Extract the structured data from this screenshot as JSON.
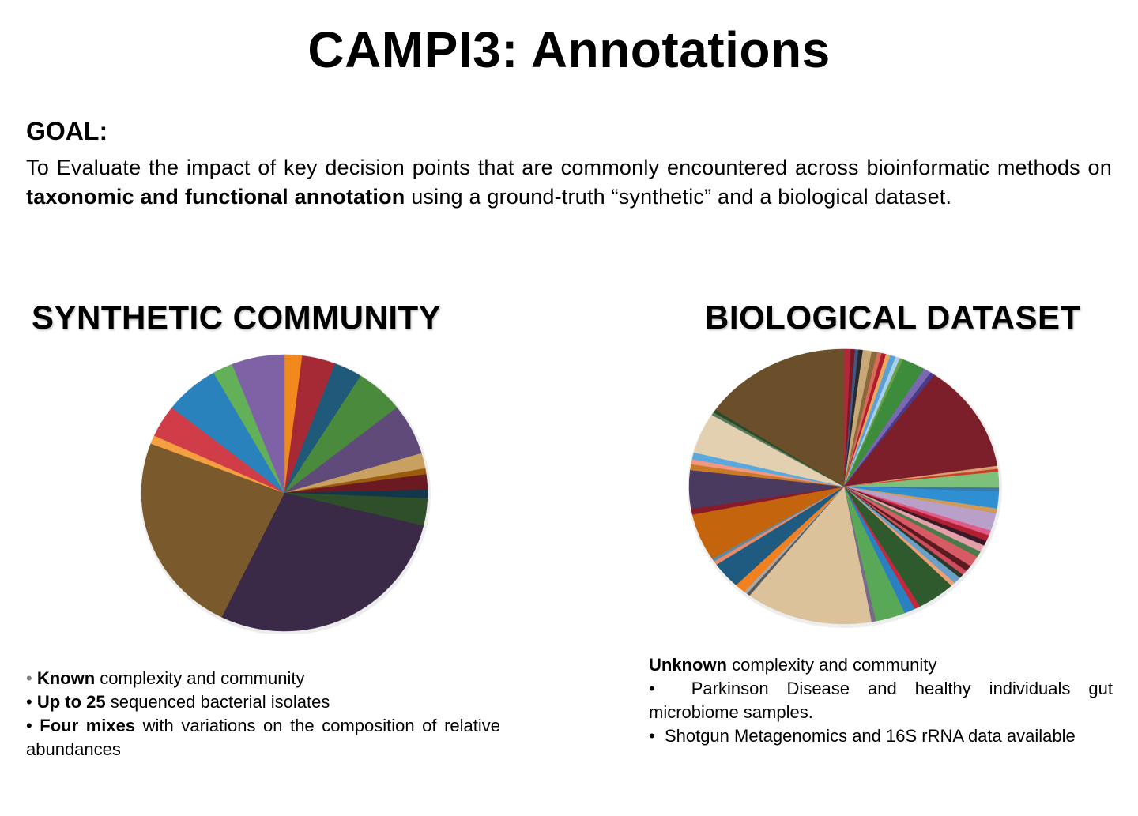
{
  "title": "CAMPI3: Annotations",
  "goal": {
    "heading": "GOAL:",
    "text_pre": "To Evaluate the impact of key decision points that are commonly encountered across bioinformatic methods on ",
    "text_bold": "taxonomic and functional annotation",
    "text_post": " using a ground-truth “synthetic” and a biological dataset."
  },
  "synthetic": {
    "heading": "SYNTHETIC COMMUNITY",
    "bullets": [
      {
        "bullet": "•",
        "bold": "Known",
        "rest": " complexity and community"
      },
      {
        "bullet": "•",
        "bold": "Up to 25",
        "rest": " sequenced bacterial isolates"
      },
      {
        "bullet": "•",
        "bold": "Four mixes",
        "rest": " with variations on the composition of relative abundances"
      }
    ]
  },
  "biological": {
    "heading": "BIOLOGICAL DATASET",
    "intro_bold": "Unknown",
    "intro_rest": " complexity and community",
    "bullets": [
      {
        "bullet": "•",
        "text": "Parkinson Disease and healthy individuals gut microbiome samples."
      },
      {
        "bullet": "•",
        "text": "Shotgun Metagenomics and 16S rRNA data available"
      }
    ]
  },
  "chart_data": [
    {
      "type": "pie",
      "slices": [
        {
          "value": 2.0,
          "color": "#f08a1c"
        },
        {
          "value": 3.8,
          "color": "#a52a35"
        },
        {
          "value": 3.2,
          "color": "#1f5a7a"
        },
        {
          "value": 5.5,
          "color": "#4a8a3c"
        },
        {
          "value": 6.0,
          "color": "#5f4a7a"
        },
        {
          "value": 1.8,
          "color": "#c8a060"
        },
        {
          "value": 0.7,
          "color": "#9a5a10"
        },
        {
          "value": 1.8,
          "color": "#6a1a20"
        },
        {
          "value": 1.0,
          "color": "#12364a"
        },
        {
          "value": 3.2,
          "color": "#2f4f2a"
        },
        {
          "value": 28.6,
          "color": "#3a2a48"
        },
        {
          "value": 23.7,
          "color": "#7a5a2c"
        },
        {
          "value": 1.0,
          "color": "#f5a040"
        },
        {
          "value": 3.8,
          "color": "#d03c48"
        },
        {
          "value": 6.2,
          "color": "#2a82bc"
        },
        {
          "value": 2.3,
          "color": "#62b058"
        },
        {
          "value": 6.0,
          "color": "#7f62a6"
        }
      ]
    },
    {
      "type": "pie",
      "slices": [
        {
          "value": 0.6,
          "color": "#b22838"
        },
        {
          "value": 0.4,
          "color": "#7a1a28"
        },
        {
          "value": 0.3,
          "color": "#3a5a8a"
        },
        {
          "value": 0.4,
          "color": "#2a2a2a"
        },
        {
          "value": 0.8,
          "color": "#c8a878"
        },
        {
          "value": 0.5,
          "color": "#8a6a3a"
        },
        {
          "value": 0.4,
          "color": "#d86a5a"
        },
        {
          "value": 0.4,
          "color": "#b01c2c"
        },
        {
          "value": 0.4,
          "color": "#e8a860"
        },
        {
          "value": 0.5,
          "color": "#5aa0d8"
        },
        {
          "value": 0.4,
          "color": "#a8d0e8"
        },
        {
          "value": 0.3,
          "color": "#6aa04a"
        },
        {
          "value": 2.1,
          "color": "#3c8c3c"
        },
        {
          "value": 0.7,
          "color": "#7a68b0"
        },
        {
          "value": 0.4,
          "color": "#4a3a8a"
        },
        {
          "value": 11.0,
          "color": "#7d1f2a"
        },
        {
          "value": 0.3,
          "color": "#d8a070"
        },
        {
          "value": 0.3,
          "color": "#c84028"
        },
        {
          "value": 1.6,
          "color": "#7cc07c"
        },
        {
          "value": 0.4,
          "color": "#3a7aa8"
        },
        {
          "value": 1.7,
          "color": "#2f8fd3"
        },
        {
          "value": 0.5,
          "color": "#d09a5a"
        },
        {
          "value": 1.8,
          "color": "#b8a0c8"
        },
        {
          "value": 0.5,
          "color": "#e05a8a"
        },
        {
          "value": 0.6,
          "color": "#b02030"
        },
        {
          "value": 0.5,
          "color": "#3a1a28"
        },
        {
          "value": 0.7,
          "color": "#e4a0a8"
        },
        {
          "value": 0.6,
          "color": "#4a7a4a"
        },
        {
          "value": 1.1,
          "color": "#d85a64"
        },
        {
          "value": 0.6,
          "color": "#5a1a20"
        },
        {
          "value": 0.5,
          "color": "#d04c5c"
        },
        {
          "value": 0.4,
          "color": "#2a3a2a"
        },
        {
          "value": 0.7,
          "color": "#6aa0c8"
        },
        {
          "value": 0.4,
          "color": "#f0a070"
        },
        {
          "value": 3.5,
          "color": "#2e5a2e"
        },
        {
          "value": 0.5,
          "color": "#c4283c"
        },
        {
          "value": 1.0,
          "color": "#2a80c0"
        },
        {
          "value": 2.7,
          "color": "#58a858"
        },
        {
          "value": 0.4,
          "color": "#7a6a8a"
        },
        {
          "value": 11.5,
          "color": "#dcc29a"
        },
        {
          "value": 0.3,
          "color": "#5a5a5a"
        },
        {
          "value": 0.3,
          "color": "#a8a8a8"
        },
        {
          "value": 1.0,
          "color": "#f08020"
        },
        {
          "value": 2.7,
          "color": "#1f5a80"
        },
        {
          "value": 0.4,
          "color": "#e88a6a"
        },
        {
          "value": 0.3,
          "color": "#5a8aa8"
        },
        {
          "value": 4.8,
          "color": "#c4640c"
        },
        {
          "value": 0.6,
          "color": "#8a1a2a"
        },
        {
          "value": 3.9,
          "color": "#4a3a60"
        },
        {
          "value": 0.6,
          "color": "#c87a2a"
        },
        {
          "value": 0.5,
          "color": "#f09880"
        },
        {
          "value": 0.7,
          "color": "#5aa8e0"
        },
        {
          "value": 4.1,
          "color": "#e3d0b0"
        },
        {
          "value": 0.3,
          "color": "#5a7a5a"
        },
        {
          "value": 0.3,
          "color": "#2a4a2a"
        },
        {
          "value": 13.5,
          "color": "#6b4f2a"
        }
      ]
    }
  ]
}
